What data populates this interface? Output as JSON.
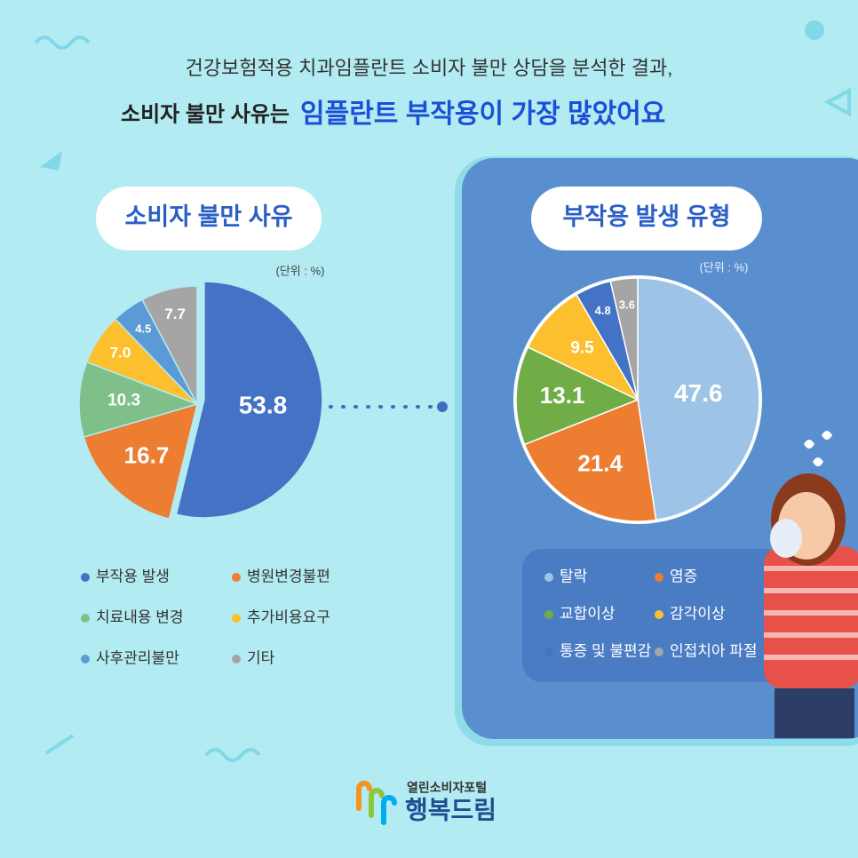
{
  "header": {
    "line1": "건강보험적용 치과임플란트 소비자 불만 상담을 분석한 결과,",
    "line2_lead": "소비자 불만 사유는",
    "line2_highlight": "임플란트 부작용이  가장 많았어요"
  },
  "chart_data": [
    {
      "type": "pie",
      "title": "소비자 불만 사유",
      "unit_note": "(단위 : %)",
      "categories": [
        "부작용 발생",
        "병원변경불편",
        "치료내용 변경",
        "추가비용요구",
        "사후관리불만",
        "기타"
      ],
      "values": [
        53.8,
        16.7,
        10.3,
        7,
        4.5,
        7.7
      ],
      "value_labels": [
        "53.8",
        "16.7",
        "10.3",
        "7.0",
        "4.5",
        "7.7"
      ],
      "colors": [
        "#4472c4",
        "#ed7d31",
        "#7fc08a",
        "#fcc02e",
        "#5b9bd5",
        "#a5a5a5"
      ]
    },
    {
      "type": "pie",
      "title": "부작용 발생 유형",
      "unit_note": "(단위 : %)",
      "categories": [
        "탈락",
        "염증",
        "교합이상",
        "감각이상",
        "통증 및 불편감",
        "인접치아 파절"
      ],
      "values": [
        47.6,
        21.4,
        13.1,
        9.5,
        4.8,
        3.6
      ],
      "colors": [
        "#9dc3e6",
        "#ed7d31",
        "#70ad47",
        "#fcc02e",
        "#4472c4",
        "#a5a5a5"
      ]
    }
  ],
  "footer": {
    "portal": "열린소비자포털",
    "brand": "행복드림"
  }
}
